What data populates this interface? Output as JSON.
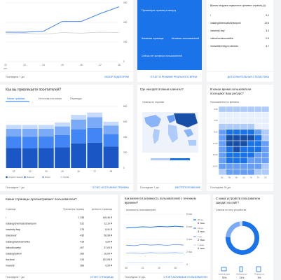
{
  "audience": {
    "date_range": "Последние 7 дн.",
    "link": "ОБЗОР АУДИТОРИИ"
  },
  "realtime": {
    "subtitle": "Просмотры страниц в минуту",
    "col1": "Активные страницы",
    "col2": "Активных пользователей",
    "footer_note": "Сейчас нет активных пользователей",
    "link": "ОТЧЕТ В РЕЖИМЕ РЕАЛЬНОГО ВРЕМ."
  },
  "landing": {
    "title": "Время загрузки отдельных целевых страниц (с)",
    "rows": [
      [
        "/",
        "4,1"
      ],
      [
        "/catalog/chemicals/shampuni",
        "13,6"
      ],
      [
        "/raschety-faq/",
        "3,4"
      ],
      [
        "/ukhod/avtokosmetika",
        "0,5"
      ],
      [
        "/novosti/sovety-po-ukhodu",
        "3,7"
      ]
    ],
    "link": "ДОПОЛНИТЕЛЬНАЯ СТАТИСТИКА"
  },
  "traffic": {
    "title": "Как вы привлекаете посетителей?",
    "tabs": [
      "Канал трафика",
      "Источник или канал",
      "Переходы"
    ],
    "date_range": "Последние 7 дн.",
    "link": "ОТЧЕТ ИСТОЧНИКИ ТРАФИКА"
  },
  "geo": {
    "title": "Где находятся ваши клиенты?",
    "subtitle": "Сеансы по странам",
    "date_range": "Последние 7 дн.",
    "link": "МЕСТОПОЛОЖЕНИЕ"
  },
  "time": {
    "title": "В какое время пользователи",
    "title2": "посещают ваш ресурс?",
    "subtitle": "Пользователи по времени",
    "date_range": "Последние 30 дн."
  },
  "pages": {
    "title": "Какие страницы просматривают пользователи?",
    "header": [
      "Страница",
      "Просмотры страниц",
      "Ценность страницы"
    ],
    "rows": [
      [
        "/",
        "1 338",
        "145,46 ₽"
      ],
      [
        "/catalog/chemicals/shampuni",
        "512",
        "12,10 ₽"
      ],
      [
        "/raschety-faq/",
        "476",
        "8,41 ₽"
      ],
      [
        "/checkout/",
        "435",
        "56,08 ₽"
      ],
      [
        "/catalog/avtokosmetika",
        "418",
        "3,20 ₽"
      ],
      [
        "/ukhod/sovety/",
        "407",
        "37,00 ₽"
      ],
      [
        "/catalog/polirol/",
        "363",
        "10,00 ₽"
      ],
      [
        "/korzina/",
        "315",
        "132,05 ₽"
      ],
      [
        "/novosti/",
        "286",
        "0,00 ₽"
      ]
    ],
    "date_range": "Последние 7 дн.",
    "link": "ОТЧЕТ СТРАНИЦЫ"
  },
  "activity": {
    "title": "Как меняется активность пользователей с течением",
    "title2": "времени?",
    "subtitle": "Активность пользователей",
    "date_range": "Последние 30 дн.",
    "link": "ОТЧЕТ АКТИВНЫЕ ПОЛЬЗОВАТЕЛИ"
  },
  "devices": {
    "title": "С каких устройств пользователи",
    "title2": "заходят на сайт?",
    "subtitle": "Сеансы по типу устройства"
  },
  "chart_data": [
    {
      "type": "line",
      "x": [
        "22",
        "23",
        "24",
        "25",
        "26",
        "27",
        "28"
      ],
      "x_sublabel": "дек.",
      "series": [
        {
          "color": "#4285f4",
          "values": [
            150,
            150,
            155,
            205,
            205,
            245,
            280
          ]
        },
        {
          "color": "#c9c9c9",
          "values": [
            140,
            145,
            140,
            148,
            145,
            150,
            148
          ]
        }
      ],
      "ylim": [
        0,
        300
      ],
      "yticks": [
        0,
        100,
        200,
        300
      ]
    },
    {
      "type": "bar",
      "categories": [
        "22",
        "23",
        "24",
        "25",
        "26",
        "27",
        "28"
      ],
      "series": [
        {
          "name": "Organic Search",
          "color": "#1a56c4",
          "values": [
            260,
            255,
            260,
            270,
            320,
            330,
            280
          ]
        },
        {
          "name": "Referral",
          "color": "#4285f4",
          "values": [
            150,
            150,
            150,
            160,
            180,
            190,
            160
          ]
        },
        {
          "name": "Direct",
          "color": "#7baaf7",
          "values": [
            100,
            105,
            100,
            110,
            130,
            140,
            110
          ]
        },
        {
          "name": "Social",
          "color": "#c6dafc",
          "values": [
            50,
            50,
            50,
            50,
            60,
            60,
            50
          ]
        }
      ],
      "ylim": [
        0,
        800
      ],
      "yticks": [
        0,
        200,
        400,
        600,
        800
      ]
    },
    {
      "type": "heatmap",
      "columns": [
        "Вс",
        "Пн",
        "Вт",
        "Ср",
        "Чт",
        "Пт",
        "Сб"
      ],
      "rows": [
        "0:00",
        null,
        "4:00",
        null,
        "8:00",
        null,
        "12:00",
        null,
        "16:00",
        null,
        "20:00",
        null
      ],
      "colors": [
        "#e8f0fe",
        "#aecbfa",
        "#669df6",
        "#1a73e8",
        "#174ea6"
      ],
      "values": [
        [
          1,
          1,
          1,
          1,
          1,
          1,
          1
        ],
        [
          0,
          0,
          0,
          0,
          0,
          0,
          0
        ],
        [
          0,
          0,
          0,
          0,
          0,
          0,
          0
        ],
        [
          1,
          1,
          1,
          1,
          1,
          0,
          0
        ],
        [
          2,
          3,
          3,
          3,
          3,
          2,
          1
        ],
        [
          2,
          4,
          4,
          4,
          4,
          3,
          1
        ],
        [
          2,
          4,
          4,
          4,
          3,
          3,
          2
        ],
        [
          2,
          3,
          4,
          3,
          3,
          3,
          2
        ],
        [
          2,
          3,
          3,
          3,
          3,
          2,
          2
        ],
        [
          2,
          3,
          3,
          3,
          2,
          2,
          2
        ],
        [
          2,
          2,
          2,
          2,
          2,
          2,
          1
        ],
        [
          1,
          2,
          2,
          2,
          2,
          1,
          1
        ]
      ]
    },
    {
      "type": "line",
      "x": [
        "05",
        null,
        "12",
        null,
        "19",
        null,
        "26",
        null
      ],
      "series": [
        {
          "name": "30 дн.",
          "summary": "6 тыс.",
          "color": "#1a73e8",
          "values": [
            5800,
            5900,
            6000,
            5950,
            6050,
            6000,
            6100,
            6000
          ]
        },
        {
          "name": "14 дн.",
          "summary": "3 тыс.",
          "color": "#4285f4",
          "values": [
            3100,
            3000,
            3200,
            3100,
            3150,
            3050,
            3200,
            3100
          ]
        },
        {
          "name": "7 дн.",
          "summary": "2 тыс.",
          "color": "#7baaf7",
          "values": [
            1800,
            1850,
            1750,
            1900,
            1800,
            1850,
            1900,
            1800
          ]
        },
        {
          "name": "1 день",
          "summary": "0 тыс.",
          "color": "#c6dafc",
          "values": [
            300,
            320,
            280,
            310,
            290,
            330,
            300,
            310
          ]
        }
      ],
      "ylim": [
        0,
        8000
      ],
      "yticks": [
        0,
        {
          "value": 2000,
          "label": "2 тыс."
        },
        {
          "value": 4000,
          "label": "4 тыс."
        },
        {
          "value": 6000,
          "label": "6 тыс."
        },
        {
          "value": 8000,
          "label": "8 тыс."
        }
      ]
    },
    {
      "type": "pie",
      "categories": [
        "Компьютеры",
        "Мобильные",
        "Планшеты"
      ],
      "values": [
        76,
        21,
        3
      ],
      "value_labels": [
        "76%",
        "21%",
        "3%"
      ],
      "colors": [
        "#1a73e8",
        "#7baaf7",
        "#c6dafc"
      ]
    }
  ]
}
